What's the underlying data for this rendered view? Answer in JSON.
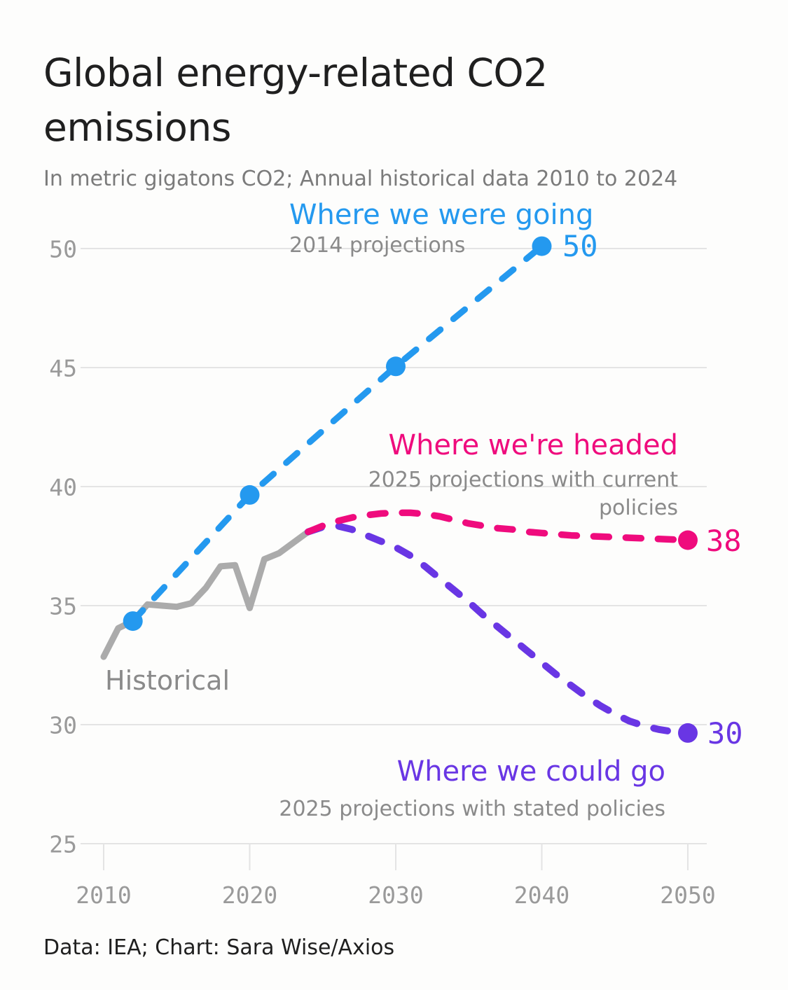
{
  "header": {
    "title": "Global energy-related CO2 emissions",
    "subtitle": "In metric gigatons CO2; Annual historical data 2010 to 2024"
  },
  "footer": {
    "source_line": "Data: IEA; Chart: Sara Wise/Axios"
  },
  "colors": {
    "blue": "#2499ef",
    "pink": "#ef0b7d",
    "purple": "#6936e4",
    "historical_gray": "#ababab",
    "grid_gray": "#e4e4e4",
    "axis_label_gray": "#9a9a9a",
    "annotation_sub_gray": "#8a8a8a",
    "text_dark": "#1f1f1f"
  },
  "chart_data": {
    "type": "line",
    "title": "Global energy-related CO2 emissions",
    "subtitle": "In metric gigatons CO2; Annual historical data 2010 to 2024",
    "xlabel": "",
    "ylabel": "",
    "x_axis": {
      "ticks": [
        "2010",
        "2020",
        "2030",
        "2040",
        "2050"
      ],
      "min": 2010,
      "max": 2050
    },
    "y_axis": {
      "ticks": [
        25,
        30,
        35,
        40,
        45,
        50
      ],
      "min": 25,
      "max": 50,
      "grid": true
    },
    "legend": "inline-annotations",
    "series": [
      {
        "id": "historical",
        "name": "Historical",
        "color": "#ababab",
        "style": "solid",
        "markers": "none",
        "points": [
          [
            2010,
            32.85
          ],
          [
            2011,
            34.05
          ],
          [
            2012,
            34.35
          ],
          [
            2013,
            35.05
          ],
          [
            2014,
            35.0
          ],
          [
            2015,
            34.95
          ],
          [
            2016,
            35.1
          ],
          [
            2017,
            35.75
          ],
          [
            2018,
            36.65
          ],
          [
            2019,
            36.7
          ],
          [
            2020,
            34.9
          ],
          [
            2021,
            36.95
          ],
          [
            2022,
            37.2
          ],
          [
            2023,
            37.65
          ],
          [
            2024,
            38.1
          ]
        ]
      },
      {
        "id": "going",
        "name": "Where we were going",
        "subtitle": "2014 projections",
        "color": "#2499ef",
        "style": "dashed",
        "markers": "all",
        "end_label": "50",
        "points": [
          [
            2012,
            34.35
          ],
          [
            2020,
            39.65
          ],
          [
            2030,
            45.05
          ],
          [
            2040,
            50.1
          ]
        ]
      },
      {
        "id": "headed",
        "name": "Where we're headed",
        "subtitle": "2025 projections with current policies",
        "color": "#ef0b7d",
        "style": "dashed",
        "markers": "end",
        "end_label": "38",
        "points": [
          [
            2024,
            38.1
          ],
          [
            2025,
            38.35
          ],
          [
            2026,
            38.55
          ],
          [
            2027,
            38.7
          ],
          [
            2028,
            38.8
          ],
          [
            2029,
            38.87
          ],
          [
            2030,
            38.9
          ],
          [
            2031,
            38.9
          ],
          [
            2032,
            38.85
          ],
          [
            2033,
            38.75
          ],
          [
            2034,
            38.6
          ],
          [
            2035,
            38.45
          ],
          [
            2036,
            38.35
          ],
          [
            2037,
            38.25
          ],
          [
            2038,
            38.2
          ],
          [
            2039,
            38.1
          ],
          [
            2040,
            38.05
          ],
          [
            2042,
            37.95
          ],
          [
            2044,
            37.9
          ],
          [
            2046,
            37.85
          ],
          [
            2048,
            37.8
          ],
          [
            2050,
            37.75
          ]
        ]
      },
      {
        "id": "could",
        "name": "Where we could go",
        "subtitle": "2025 projections with stated policies",
        "color": "#6936e4",
        "style": "dashed",
        "markers": "end",
        "end_label": "30",
        "points": [
          [
            2024,
            38.1
          ],
          [
            2025,
            38.3
          ],
          [
            2026,
            38.35
          ],
          [
            2027,
            38.2
          ],
          [
            2028,
            37.95
          ],
          [
            2029,
            37.7
          ],
          [
            2030,
            37.45
          ],
          [
            2031,
            37.1
          ],
          [
            2032,
            36.65
          ],
          [
            2033,
            36.15
          ],
          [
            2034,
            35.65
          ],
          [
            2035,
            35.15
          ],
          [
            2036,
            34.6
          ],
          [
            2037,
            34.1
          ],
          [
            2038,
            33.6
          ],
          [
            2039,
            33.1
          ],
          [
            2040,
            32.6
          ],
          [
            2041,
            32.1
          ],
          [
            2042,
            31.65
          ],
          [
            2043,
            31.2
          ],
          [
            2044,
            30.8
          ],
          [
            2045,
            30.45
          ],
          [
            2046,
            30.15
          ],
          [
            2047,
            29.95
          ],
          [
            2048,
            29.8
          ],
          [
            2049,
            29.7
          ],
          [
            2050,
            29.65
          ]
        ]
      }
    ]
  }
}
